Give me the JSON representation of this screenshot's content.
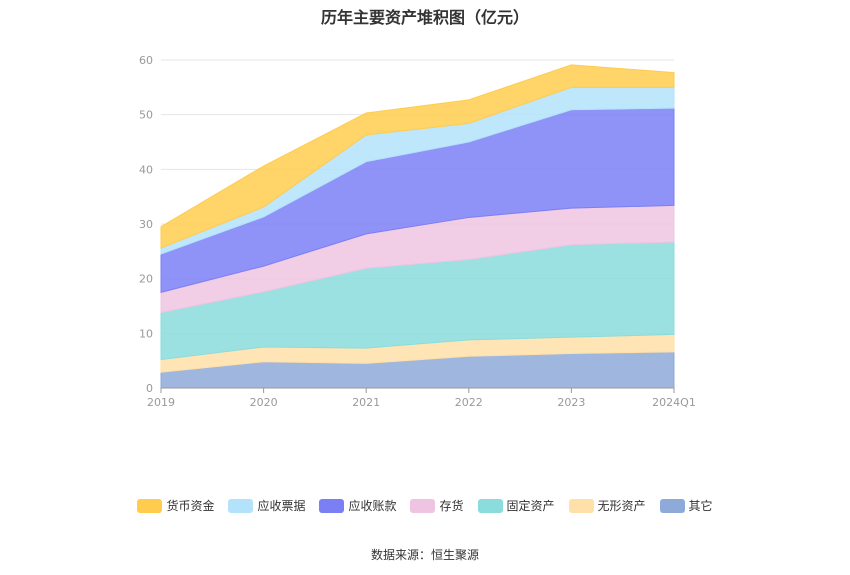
{
  "chart_data": {
    "type": "area",
    "stacked": true,
    "title": "历年主要资产堆积图（亿元）",
    "xlabel": "",
    "ylabel": "",
    "categories": [
      "2019",
      "2020",
      "2021",
      "2022",
      "2023",
      "2024Q1"
    ],
    "ylim": [
      0,
      60
    ],
    "yticks": [
      "0",
      "10",
      "20",
      "30",
      "40",
      "50",
      "60"
    ],
    "grid": true,
    "legend_position": "bottom",
    "series": [
      {
        "name": "其它",
        "color": "#8eaad8",
        "values": [
          2.9,
          4.8,
          4.5,
          5.8,
          6.3,
          6.6
        ]
      },
      {
        "name": "无形资产",
        "color": "#ffe0a8",
        "values": [
          2.3,
          2.7,
          2.8,
          3.0,
          3.0,
          3.2
        ]
      },
      {
        "name": "固定资产",
        "color": "#8bdcdc",
        "values": [
          8.6,
          10.1,
          14.6,
          14.7,
          16.9,
          16.9
        ]
      },
      {
        "name": "存货",
        "color": "#efc4e2",
        "values": [
          3.7,
          4.7,
          6.3,
          7.7,
          6.7,
          6.7
        ]
      },
      {
        "name": "应收账款",
        "color": "#7b7ff4",
        "values": [
          7.0,
          9.0,
          13.2,
          13.8,
          18.0,
          17.8
        ]
      },
      {
        "name": "应收票据",
        "color": "#b3e3fb",
        "values": [
          1.1,
          1.8,
          4.9,
          3.4,
          4.1,
          3.8
        ]
      },
      {
        "name": "货币资金",
        "color": "#ffcc4d",
        "values": [
          3.9,
          7.5,
          4.0,
          4.3,
          4.1,
          2.7
        ]
      }
    ],
    "legend_order": [
      "货币资金",
      "应收票据",
      "应收账款",
      "存货",
      "固定资产",
      "无形资产",
      "其它"
    ]
  },
  "source_label": "数据来源：恒生聚源"
}
